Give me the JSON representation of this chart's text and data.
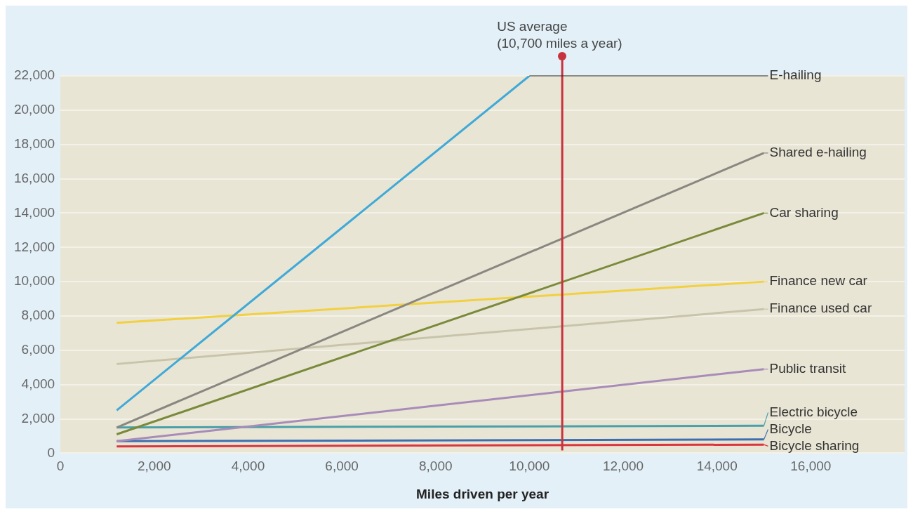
{
  "chart_data": {
    "type": "line",
    "xlabel": "Miles driven per year",
    "xlim": [
      0,
      18000
    ],
    "xticks": [
      0,
      {
        "value": 2000,
        "label": "2,000"
      },
      {
        "value": 4000,
        "label": "4,000"
      },
      {
        "value": 6000,
        "label": "6,000"
      },
      {
        "value": 8000,
        "label": "8,000"
      },
      {
        "value": 10000,
        "label": "10,000"
      },
      {
        "value": 12000,
        "label": "12,000"
      },
      {
        "value": 14000,
        "label": "14,000"
      },
      {
        "value": 16000,
        "label": "16,000"
      }
    ],
    "ylim": [
      0,
      22000
    ],
    "yticks": [
      0,
      {
        "value": 2000,
        "label": "2,000"
      },
      {
        "value": 4000,
        "label": "4,000"
      },
      {
        "value": 6000,
        "label": "6,000"
      },
      {
        "value": 8000,
        "label": "8,000"
      },
      {
        "value": 10000,
        "label": "10,000"
      },
      {
        "value": 12000,
        "label": "12,000"
      },
      {
        "value": 14000,
        "label": "14,000"
      },
      {
        "value": 16000,
        "label": "16,000"
      },
      {
        "value": 18000,
        "label": "18,000"
      },
      {
        "value": 20000,
        "label": "20,000"
      },
      {
        "value": 22000,
        "label": "22,000"
      }
    ],
    "grid": "y",
    "legend": "right",
    "line_style": "solid",
    "series": [
      {
        "name": "E-hailing",
        "color": "#3fa9d8",
        "x": [
          1200,
          10000
        ],
        "values": [
          2500,
          22000
        ]
      },
      {
        "name": "Shared e-hailing",
        "color": "#8a8780",
        "x": [
          1200,
          15000
        ],
        "values": [
          1500,
          17500
        ]
      },
      {
        "name": "Car sharing",
        "color": "#7a8a3a",
        "x": [
          1200,
          15000
        ],
        "values": [
          1100,
          14000
        ]
      },
      {
        "name": "Finance new car",
        "color": "#f2d040",
        "x": [
          1200,
          15000
        ],
        "values": [
          7600,
          10000
        ]
      },
      {
        "name": "Finance used car",
        "color": "#c8c4aa",
        "x": [
          1200,
          15000
        ],
        "values": [
          5200,
          8400
        ]
      },
      {
        "name": "Public transit",
        "color": "#a98bb8",
        "x": [
          1200,
          15000
        ],
        "values": [
          700,
          4900
        ]
      },
      {
        "name": "Electric bicycle",
        "color": "#4aa0a8",
        "x": [
          1200,
          15000
        ],
        "values": [
          1500,
          1600
        ]
      },
      {
        "name": "Bicycle",
        "color": "#3d6fb0",
        "x": [
          1200,
          15000
        ],
        "values": [
          700,
          800
        ]
      },
      {
        "name": "Bicycle sharing",
        "color": "#d9363e",
        "x": [
          1200,
          15000
        ],
        "values": [
          400,
          500
        ]
      }
    ],
    "ref_lines": [
      {
        "axis": "x",
        "value": 10700,
        "label": "US average (10,700 miles a year)",
        "color": "#c8323c"
      }
    ]
  }
}
